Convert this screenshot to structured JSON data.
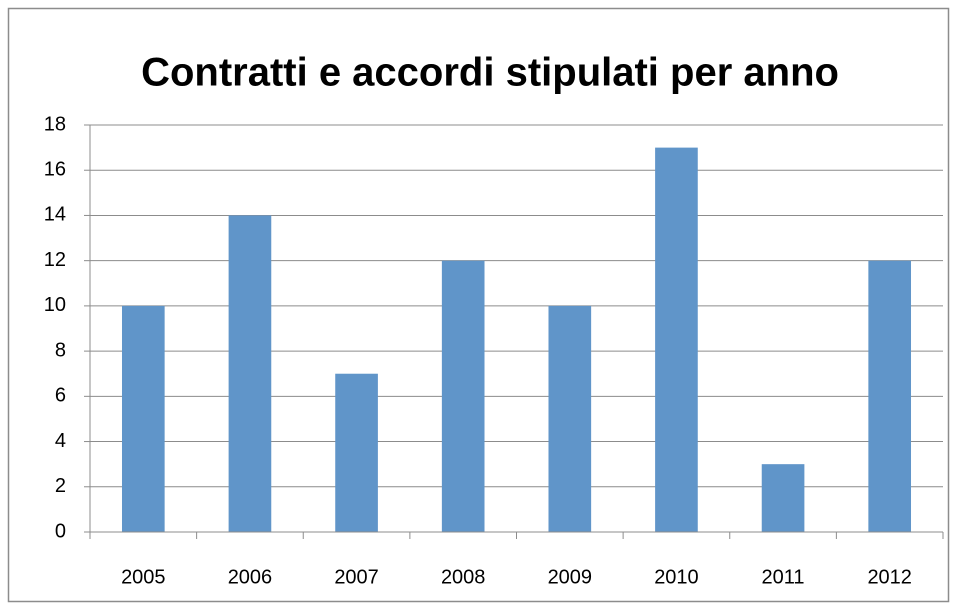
{
  "chart_data": {
    "type": "bar",
    "title": "Contratti e accordi stipulati per anno",
    "categories": [
      "2005",
      "2006",
      "2007",
      "2008",
      "2009",
      "2010",
      "2011",
      "2012"
    ],
    "values": [
      10,
      14,
      7,
      12,
      10,
      17,
      3,
      12
    ],
    "color": "#6095c9",
    "ylim": [
      0,
      18
    ],
    "yticks": [
      0,
      2,
      4,
      6,
      8,
      10,
      12,
      14,
      16,
      18
    ],
    "grid": true
  }
}
